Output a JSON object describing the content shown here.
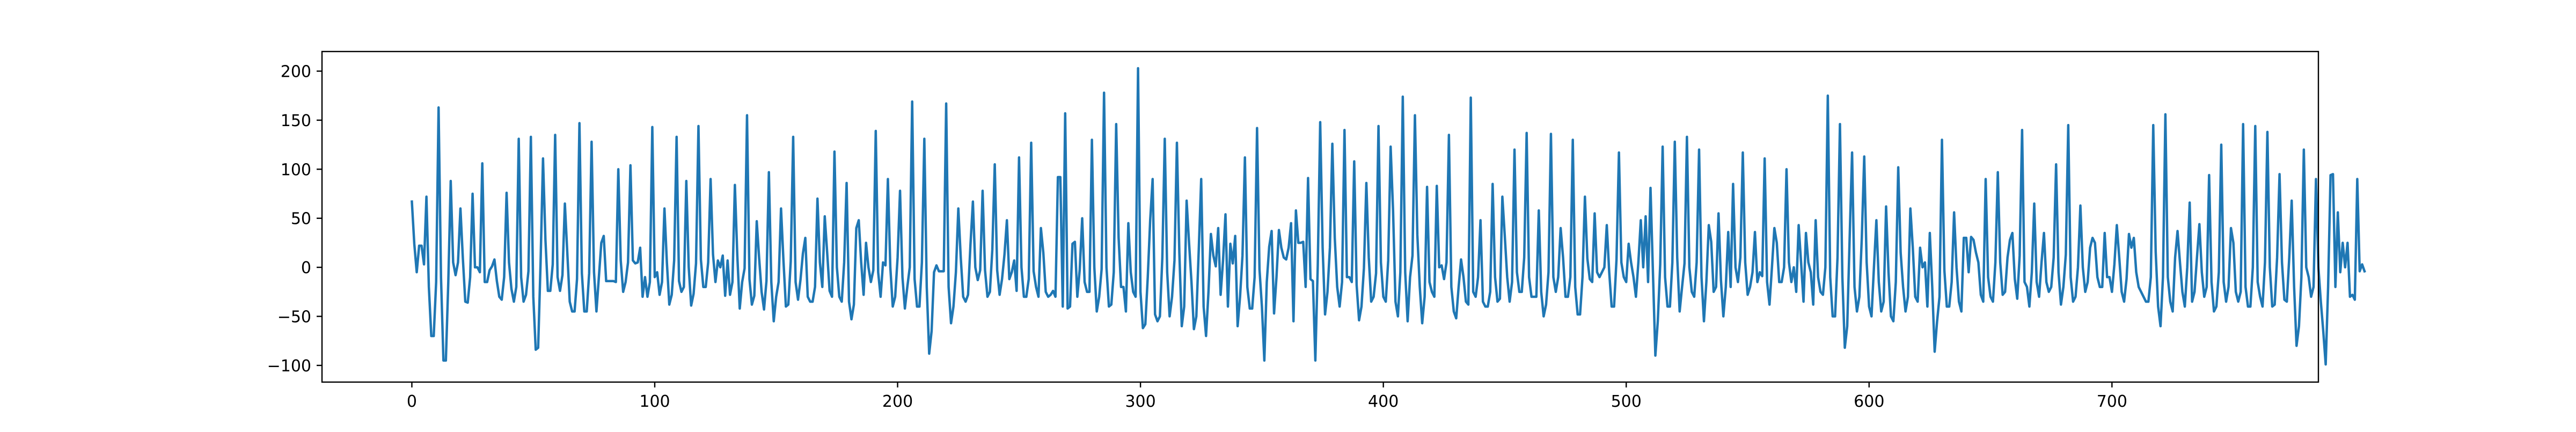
{
  "chart_data": {
    "type": "line",
    "title": "",
    "xlabel": "",
    "ylabel": "",
    "xlim": [
      -37,
      785
    ],
    "ylim": [
      -117,
      220
    ],
    "grid": false,
    "x_ticks": [
      0,
      100,
      200,
      300,
      400,
      500,
      600,
      700
    ],
    "x_tick_labels": [
      "0",
      "100",
      "200",
      "300",
      "400",
      "500",
      "600",
      "700"
    ],
    "y_ticks": [
      -100,
      -50,
      0,
      50,
      100,
      150,
      200
    ],
    "y_tick_labels": [
      "−100",
      "−50",
      "0",
      "50",
      "100",
      "150",
      "200"
    ],
    "series": [
      {
        "name": "",
        "color": "#1f77b4",
        "x_start": 0,
        "x_step": 1,
        "y": [
          67,
          24,
          -5,
          22,
          22,
          3,
          72,
          -20,
          -70,
          -70,
          -15,
          163,
          -10,
          -95,
          -95,
          -15,
          88,
          5,
          -8,
          5,
          60,
          9,
          -35,
          -36,
          -10,
          75,
          0,
          0,
          -5,
          106,
          -15,
          -15,
          -3,
          1,
          8,
          -14,
          -30,
          -33,
          -10,
          76,
          5,
          -22,
          -35,
          -20,
          131,
          -10,
          -35,
          -28,
          -4,
          133,
          -30,
          -84,
          -82,
          5,
          111,
          28,
          -24,
          -24,
          3,
          135,
          -10,
          -24,
          -8,
          65,
          15,
          -35,
          -45,
          -45,
          -12,
          147,
          -6,
          -45,
          -45,
          -6,
          128,
          -5,
          -45,
          -10,
          25,
          32,
          -14,
          -14,
          -14,
          -14,
          -15,
          100,
          7,
          -25,
          -15,
          5,
          104,
          7,
          4,
          5,
          20,
          -30,
          -10,
          -30,
          -15,
          143,
          -10,
          -5,
          -28,
          -15,
          60,
          5,
          -38,
          -28,
          7,
          133,
          -14,
          -25,
          -20,
          88,
          0,
          -39,
          -27,
          4,
          144,
          8,
          -20,
          -20,
          5,
          90,
          13,
          -15,
          7,
          0,
          12,
          -29,
          7,
          -28,
          -15,
          84,
          12,
          -42,
          -15,
          -1,
          155,
          -12,
          -38,
          -29,
          47,
          9,
          -25,
          -43,
          -14,
          97,
          -15,
          -55,
          -30,
          -15,
          60,
          7,
          -40,
          -38,
          6,
          133,
          -15,
          -33,
          -13,
          14,
          30,
          -30,
          -35,
          -35,
          -20,
          70,
          5,
          -20,
          52,
          15,
          -24,
          -30,
          118,
          0,
          -30,
          -35,
          5,
          86,
          -35,
          -53,
          -38,
          40,
          48,
          5,
          -28,
          25,
          0,
          -15,
          -3,
          139,
          -5,
          -30,
          5,
          2,
          90,
          0,
          -40,
          -30,
          10,
          78,
          -10,
          -42,
          -20,
          0,
          169,
          -12,
          -40,
          -40,
          5,
          131,
          -20,
          -88,
          -65,
          -5,
          2,
          -4,
          -4,
          -4,
          167,
          -20,
          -57,
          -40,
          -5,
          60,
          10,
          -30,
          -35,
          -28,
          23,
          67,
          0,
          -13,
          -3,
          78,
          -3,
          -30,
          -25,
          18,
          105,
          -3,
          -28,
          -12,
          13,
          48,
          -12,
          -5,
          7,
          -24,
          112,
          0,
          -30,
          -30,
          -12,
          127,
          -4,
          -20,
          -30,
          40,
          15,
          -25,
          -30,
          -28,
          -24,
          -30,
          92,
          92,
          -40,
          157,
          -42,
          -40,
          24,
          26,
          -30,
          -2,
          50,
          -15,
          -25,
          -25,
          130,
          0,
          -45,
          -30,
          -2,
          178,
          0,
          -40,
          -38,
          -5,
          146,
          30,
          -20,
          -20,
          -45,
          45,
          -5,
          -25,
          -30,
          203,
          -25,
          -62,
          -58,
          -10,
          48,
          90,
          -48,
          -55,
          -50,
          10,
          131,
          -5,
          -50,
          -30,
          7,
          127,
          15,
          -60,
          -40,
          68,
          25,
          -15,
          -63,
          -50,
          18,
          90,
          -40,
          -70,
          -25,
          34,
          12,
          1,
          40,
          -28,
          7,
          54,
          -40,
          24,
          4,
          32,
          -60,
          -30,
          12,
          112,
          -20,
          -42,
          -42,
          -10,
          142,
          -2,
          -40,
          -95,
          -15,
          21,
          37,
          -47,
          -10,
          38,
          20,
          10,
          8,
          20,
          45,
          -55,
          58,
          25,
          25,
          26,
          -20,
          91,
          -12,
          -14,
          -95,
          2,
          148,
          20,
          -48,
          -25,
          20,
          126,
          30,
          -20,
          -40,
          -15,
          140,
          -10,
          -10,
          -15,
          108,
          -18,
          -54,
          -40,
          -1,
          86,
          10,
          -35,
          -30,
          -6,
          144,
          5,
          -30,
          -35,
          7,
          123,
          58,
          -35,
          -50,
          -5,
          174,
          -5,
          -55,
          -10,
          12,
          155,
          33,
          -20,
          -57,
          -30,
          82,
          -15,
          -25,
          -30,
          83,
          0,
          2,
          -12,
          5,
          135,
          -20,
          -45,
          -52,
          -20,
          8,
          -10,
          -35,
          -38,
          173,
          -25,
          -30,
          -10,
          48,
          -35,
          -40,
          -40,
          -25,
          85,
          -10,
          -35,
          -32,
          72,
          32,
          -10,
          -35,
          -15,
          120,
          -5,
          -25,
          -25,
          10,
          137,
          -10,
          -30,
          -30,
          -30,
          58,
          -25,
          -50,
          -38,
          -5,
          136,
          -10,
          -25,
          -10,
          40,
          10,
          -30,
          -30,
          -10,
          130,
          -20,
          -48,
          -48,
          -10,
          72,
          9,
          -12,
          -15,
          55,
          -5,
          -10,
          -5,
          0,
          43,
          -5,
          -40,
          -40,
          8,
          117,
          5,
          -10,
          -15,
          24,
          5,
          -10,
          -30,
          5,
          48,
          0,
          52,
          -15,
          81,
          -5,
          -90,
          -55,
          3,
          123,
          -10,
          -40,
          -40,
          5,
          128,
          10,
          -45,
          -20,
          4,
          133,
          0,
          -25,
          -30,
          5,
          120,
          -10,
          -55,
          -15,
          43,
          26,
          -25,
          -20,
          55,
          -13,
          -50,
          -20,
          36,
          -20,
          85,
          0,
          -15,
          10,
          117,
          5,
          -28,
          -20,
          -5,
          36,
          -15,
          -5,
          -9,
          111,
          -15,
          -38,
          0,
          40,
          25,
          -15,
          -15,
          0,
          100,
          5,
          -15,
          0,
          -25,
          43,
          5,
          -35,
          35,
          5,
          -5,
          -38,
          48,
          -10,
          -25,
          -28,
          0,
          175,
          -10,
          -50,
          -50,
          10,
          146,
          -10,
          -82,
          -60,
          30,
          117,
          -20,
          -45,
          -30,
          30,
          113,
          5,
          -40,
          -50,
          0,
          48,
          -15,
          -45,
          -35,
          62,
          -5,
          -50,
          -55,
          -15,
          102,
          15,
          -20,
          -45,
          -30,
          60,
          20,
          -30,
          -35,
          20,
          0,
          5,
          -40,
          35,
          -20,
          -86,
          -55,
          -30,
          130,
          -3,
          -40,
          -40,
          -15,
          56,
          0,
          -35,
          -45,
          30,
          30,
          -5,
          31,
          28,
          15,
          5,
          -28,
          -35,
          90,
          -10,
          -30,
          -35,
          5,
          97,
          5,
          -28,
          -25,
          10,
          28,
          35,
          -12,
          -32,
          12,
          140,
          -15,
          -20,
          -40,
          -5,
          65,
          -15,
          -30,
          5,
          35,
          -15,
          -25,
          -20,
          10,
          105,
          -5,
          -38,
          -20,
          13,
          145,
          -10,
          -35,
          -30,
          0,
          63,
          0,
          -25,
          -15,
          20,
          30,
          25,
          -10,
          -20,
          -20,
          35,
          -10,
          -10,
          -25,
          3,
          43,
          10,
          -25,
          -35,
          -12,
          34,
          20,
          30,
          -5,
          -20,
          -25,
          -30,
          -35,
          -35,
          -10,
          145,
          16,
          -40,
          -60,
          -10,
          156,
          -10,
          -35,
          -45,
          10,
          37,
          5,
          -25,
          -40,
          0,
          66,
          -35,
          -25,
          10,
          44,
          -5,
          -30,
          -20,
          94,
          -15,
          -45,
          -40,
          -5,
          125,
          -15,
          -35,
          -20,
          40,
          25,
          -25,
          -35,
          -25,
          146,
          -20,
          -40,
          -40,
          0,
          144,
          -15,
          -30,
          -40,
          5,
          138,
          0,
          -40,
          -38,
          10,
          95,
          5,
          -33,
          -35,
          10,
          68,
          -20,
          -80,
          -60,
          -10,
          120,
          0,
          -10,
          -30,
          -20,
          90,
          0,
          -35,
          -65,
          -99,
          -20,
          94,
          95,
          -20,
          56,
          -5,
          25,
          0,
          25,
          -30,
          -28,
          -33,
          90,
          -4,
          3,
          -4
        ]
      }
    ]
  }
}
